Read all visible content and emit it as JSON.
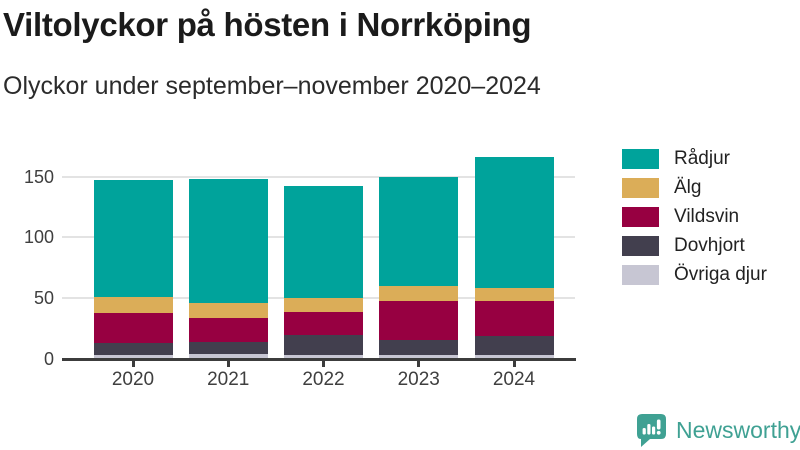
{
  "header": {
    "title": "Viltolyckor på hösten i Norrköping",
    "subtitle": "Olyckor under september–november 2020–2024"
  },
  "chart_data": {
    "type": "bar",
    "stacked": true,
    "title": "Viltolyckor på hösten i Norrköping",
    "subtitle": "Olyckor under september–november 2020–2024",
    "categories": [
      "2020",
      "2021",
      "2022",
      "2023",
      "2024"
    ],
    "series": [
      {
        "name": "Rådjur",
        "color": "#00a39b",
        "values": [
          96,
          102,
          92,
          90,
          108
        ]
      },
      {
        "name": "Älg",
        "color": "#dbad58",
        "values": [
          13,
          12,
          11,
          12,
          10
        ]
      },
      {
        "name": "Vildsvin",
        "color": "#970041",
        "values": [
          25,
          20,
          19,
          32,
          29
        ]
      },
      {
        "name": "Dovhjort",
        "color": "#423f4e",
        "values": [
          10,
          10,
          17,
          13,
          16
        ]
      },
      {
        "name": "Övriga djur",
        "color": "#c7c6d3",
        "values": [
          3,
          4,
          3,
          3,
          3
        ]
      }
    ],
    "totals": [
      147,
      148,
      142,
      150,
      166
    ],
    "xlabel": "",
    "ylabel": "",
    "ylim": [
      0,
      180
    ],
    "yticks": [
      0,
      50,
      100,
      150
    ],
    "grid": true,
    "legend_position": "right"
  },
  "colors": {
    "grid": "#e3e3e3",
    "axis": "#3c3c3c",
    "axis_text": "#3f3f3f",
    "title_text": "#1b1b1b",
    "brand_teal": "#3fa193"
  },
  "footer": {
    "brand": "Newsworthy"
  }
}
